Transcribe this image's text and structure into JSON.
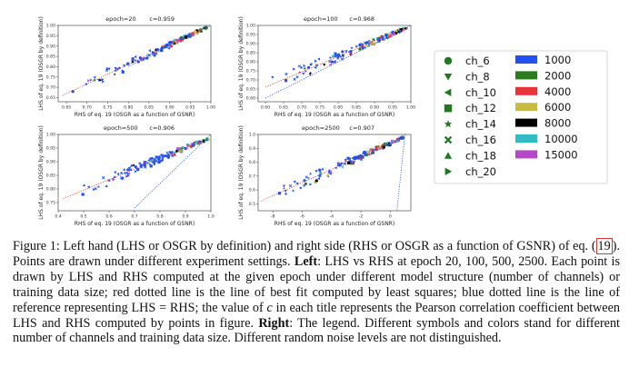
{
  "chart_data": [
    {
      "type": "scatter",
      "title": "epoch=20",
      "c_label": "c=0.959",
      "xlabel": "RHS of eq. 19 (OSGR as a function of GSNR)",
      "ylabel": "LHS of eq. 19 (OSGR by definition)",
      "xlim": [
        0.63,
        1.0
      ],
      "ylim": [
        0.63,
        1.0
      ],
      "xticks": [
        "0.65",
        "0.70",
        "0.75",
        "0.80",
        "0.85",
        "0.90",
        "0.95",
        "1.00"
      ],
      "yticks": [
        "0.65",
        "0.70",
        "0.75",
        "0.80",
        "0.85",
        "0.90",
        "0.95",
        "1.00"
      ],
      "fit_line": {
        "x": [
          0.64,
          0.99
        ],
        "y": [
          0.66,
          0.99
        ]
      },
      "reference_line": {
        "x": [
          0.8,
          1.0
        ],
        "y": [
          0.8,
          1.0
        ]
      },
      "seed": 11,
      "n_points": 140
    },
    {
      "type": "scatter",
      "title": "epoch=100",
      "c_label": "c=0.968",
      "xlabel": "RHS of eq. 19 (OSGR as a function of GSNR)",
      "ylabel": "LHS of eq. 19 (OSGR by definition)",
      "xlim": [
        0.58,
        1.0
      ],
      "ylim": [
        0.58,
        1.0
      ],
      "xticks": [
        "0.60",
        "0.65",
        "0.70",
        "0.75",
        "0.80",
        "0.85",
        "0.90",
        "0.95",
        "1.00"
      ],
      "yticks": [
        "0.60",
        "0.65",
        "0.70",
        "0.75",
        "0.80",
        "0.85",
        "0.90",
        "0.95",
        "1.00"
      ],
      "fit_line": {
        "x": [
          0.6,
          0.99
        ],
        "y": [
          0.66,
          0.99
        ]
      },
      "reference_line": {
        "x": [
          0.6,
          1.0
        ],
        "y": [
          0.6,
          1.0
        ]
      },
      "seed": 23,
      "n_points": 140
    },
    {
      "type": "scatter",
      "title": "epoch=500",
      "c_label": "c=0.906",
      "xlabel": "RHS of eq. 19 (OSGR as a function of GSNR)",
      "ylabel": "LHS of eq. 19 (OSGR by definition)",
      "xlim": [
        0.4,
        1.0
      ],
      "ylim": [
        0.72,
        1.0
      ],
      "xticks": [
        "0.4",
        "0.5",
        "0.6",
        "0.7",
        "0.8",
        "0.9",
        "1.0"
      ],
      "yticks": [
        "0.75",
        "0.80",
        "0.85",
        "0.90",
        "0.95",
        "1.00"
      ],
      "fit_line": {
        "x": [
          0.42,
          0.99
        ],
        "y": [
          0.765,
          0.985
        ]
      },
      "reference_line": {
        "x": [
          0.7,
          1.0
        ],
        "y": [
          0.73,
          1.0
        ]
      },
      "seed": 37,
      "n_points": 140
    },
    {
      "type": "scatter",
      "title": "epoch=2500",
      "c_label": "c=0.907",
      "xlabel": "RHS of eq. 19 (OSGR as a function of GSNR)",
      "ylabel": "LHS of eq. 19 (OSGR by definition)",
      "xlim": [
        -9,
        1.4
      ],
      "ylim": [
        0.45,
        1.0
      ],
      "xticks": [
        "-8",
        "-6",
        "-4",
        "-2",
        "0"
      ],
      "yticks": [
        "0.5",
        "0.6",
        "0.7",
        "0.8",
        "0.9",
        "1.0"
      ],
      "fit_line": {
        "x": [
          -8.8,
          0.9
        ],
        "y": [
          0.52,
          0.98
        ]
      },
      "reference_line": {
        "x": [
          0.45,
          1.0
        ],
        "y": [
          0.45,
          1.0
        ]
      },
      "seed": 51,
      "n_points": 160
    }
  ],
  "legend": {
    "channels": [
      {
        "label": "ch_6",
        "marker": "circle"
      },
      {
        "label": "ch_8",
        "marker": "triangle-down"
      },
      {
        "label": "ch_10",
        "marker": "triangle-left"
      },
      {
        "label": "ch_12",
        "marker": "square"
      },
      {
        "label": "ch_14",
        "marker": "star"
      },
      {
        "label": "ch_16",
        "marker": "x"
      },
      {
        "label": "ch_18",
        "marker": "triangle-up"
      },
      {
        "label": "ch_20",
        "marker": "triangle-right"
      }
    ],
    "data_sizes": [
      {
        "label": "1000",
        "color": "#2350f0"
      },
      {
        "label": "2000",
        "color": "#2a7a1e"
      },
      {
        "label": "4000",
        "color": "#e8333a"
      },
      {
        "label": "6000",
        "color": "#c8bc3e"
      },
      {
        "label": "8000",
        "color": "#000000"
      },
      {
        "label": "10000",
        "color": "#2fbcc2"
      },
      {
        "label": "15000",
        "color": "#b548c8"
      }
    ]
  },
  "colors": {
    "fit_line": "#e8333a",
    "reference_line": "#2a50e8",
    "marker_black": "#1f7a1f"
  },
  "caption": {
    "fig_label": "Figure 1:",
    "t1": " Left hand (LHS or OSGR by definition) and right side (RHS or OSGR as a function of GSNR) of eq. (",
    "ref": "19",
    "t2": "). Points are drawn under different experiment settings. ",
    "left": "Left",
    "t3": ": LHS vs RHS at epoch 20, 100, 500, 2500. Each point is drawn by LHS and RHS computed at the given epoch under different model structure (number of channels) or training data size; red dotted line is the line of best fit computed by least squares; blue dotted line is the line of reference representing LHS = RHS; the value of ",
    "c": "c",
    "t4": " in each title represents the Pearson correlation coefficient between LHS and RHS computed by points in figure. ",
    "right": "Right",
    "t5": ": The legend. Different symbols and colors stand for different number of channels and training data size. Different random noise levels are not distinguished."
  }
}
